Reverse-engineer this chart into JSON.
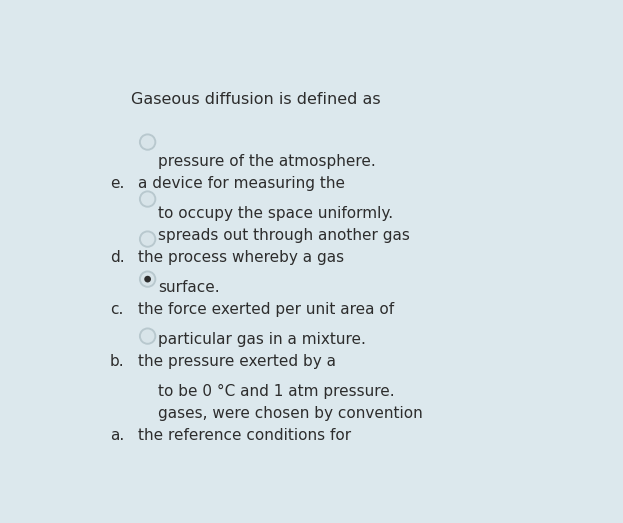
{
  "title": "Gaseous diffusion is defined as",
  "bg_color": "#dce8ed",
  "text_color": "#2d2d2d",
  "title_fontsize": 11.5,
  "option_fontsize": 11.0,
  "options": [
    {
      "label": "a.",
      "lines": [
        "the reference conditions for",
        "gases, were chosen by convention",
        "to be 0 °C and 1 atm pressure."
      ],
      "selected": false
    },
    {
      "label": "b.",
      "lines": [
        "the pressure exerted by a",
        "particular gas in a mixture."
      ],
      "selected": false
    },
    {
      "label": "c.",
      "lines": [
        "the force exerted per unit area of",
        "surface."
      ],
      "selected": false
    },
    {
      "label": "d.",
      "lines": [
        "the process whereby a gas",
        "spreads out through another gas",
        "to occupy the space uniformly."
      ],
      "selected": true
    },
    {
      "label": "e.",
      "lines": [
        "a device for measuring the",
        "pressure of the atmosphere."
      ],
      "selected": false
    }
  ],
  "radio_outer_color": "#b8c8ce",
  "radio_inner_color": "#2d2d2d",
  "radio_bg_color": "#d8e4e9",
  "radio_highlight": "#e8f0f3"
}
